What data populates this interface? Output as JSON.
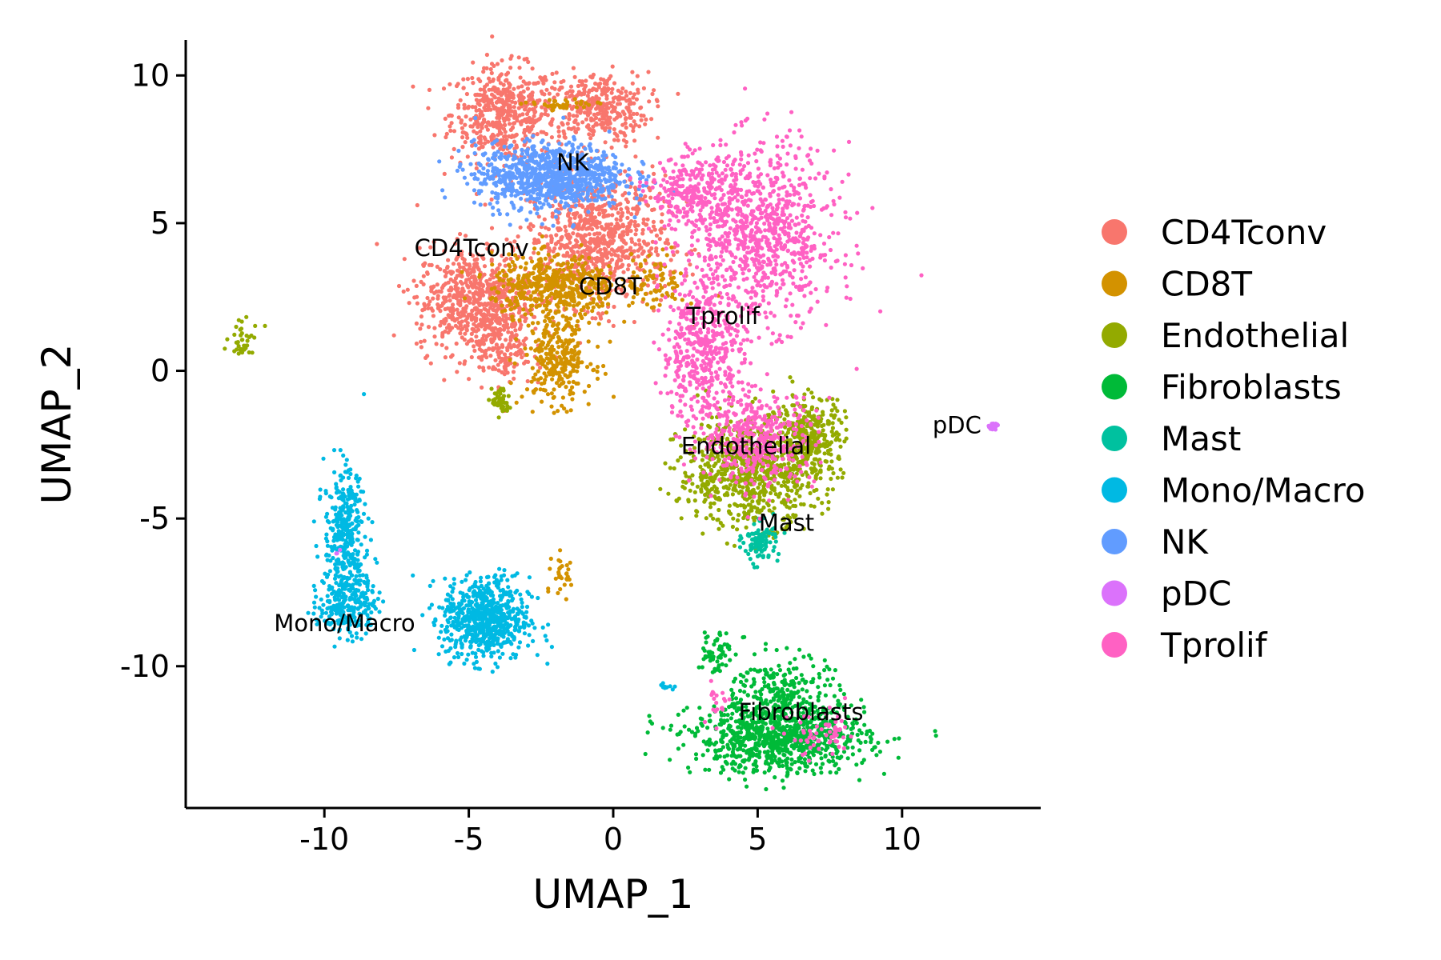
{
  "chart_data": {
    "type": "scatter",
    "title": "",
    "xlabel": "UMAP_1",
    "ylabel": "UMAP_2",
    "xlim": [
      -14.8,
      14.8
    ],
    "ylim": [
      -14.8,
      11.2
    ],
    "xticks": [
      -10,
      -5,
      0,
      5,
      10
    ],
    "yticks": [
      10,
      5,
      0,
      -5,
      -10
    ],
    "xtick_labels": [
      "-10",
      "-5",
      "0",
      "5",
      "10"
    ],
    "ytick_labels": [
      "10",
      "5",
      "0",
      "-5",
      "-10"
    ],
    "grid": false,
    "legend_position": "right",
    "series": [
      {
        "name": "CD4Tconv",
        "color": "#F8766D",
        "clusters": [
          {
            "cx": -3.8,
            "cy": 8.7,
            "sx": 0.9,
            "sy": 0.8,
            "n": 500
          },
          {
            "cx": -0.6,
            "cy": 8.9,
            "sx": 0.9,
            "sy": 0.6,
            "n": 350
          },
          {
            "cx": -0.6,
            "cy": 4.4,
            "sx": 1.2,
            "sy": 1.1,
            "n": 800
          },
          {
            "cx": -4.8,
            "cy": 2.4,
            "sx": 1.0,
            "sy": 0.9,
            "n": 650
          },
          {
            "cx": -3.8,
            "cy": 0.8,
            "sx": 0.5,
            "sy": 0.7,
            "n": 150
          }
        ]
      },
      {
        "name": "CD8T",
        "color": "#D39200",
        "clusters": [
          {
            "cx": -2.0,
            "cy": 2.9,
            "sx": 1.1,
            "sy": 0.5,
            "n": 450
          },
          {
            "cx": -1.9,
            "cy": 0.5,
            "sx": 0.6,
            "sy": 0.8,
            "n": 300
          },
          {
            "cx": -1.8,
            "cy": 9.0,
            "sx": 0.6,
            "sy": 0.1,
            "n": 40
          },
          {
            "cx": 1.5,
            "cy": 3.0,
            "sx": 0.5,
            "sy": 0.5,
            "n": 80
          },
          {
            "cx": -1.7,
            "cy": -7.0,
            "sx": 0.2,
            "sy": 0.4,
            "n": 30
          }
        ]
      },
      {
        "name": "Endothelial",
        "color": "#93AA00",
        "clusters": [
          {
            "cx": 4.7,
            "cy": -3.4,
            "sx": 1.2,
            "sy": 0.9,
            "n": 800
          },
          {
            "cx": 6.8,
            "cy": -2.2,
            "sx": 0.6,
            "sy": 0.7,
            "n": 300
          },
          {
            "cx": -12.8,
            "cy": 1.0,
            "sx": 0.3,
            "sy": 0.3,
            "n": 40
          },
          {
            "cx": -3.9,
            "cy": -1.0,
            "sx": 0.15,
            "sy": 0.25,
            "n": 50
          }
        ]
      },
      {
        "name": "Fibroblasts",
        "color": "#00BA38",
        "clusters": [
          {
            "cx": 5.8,
            "cy": -12.4,
            "sx": 1.5,
            "sy": 0.6,
            "n": 900
          },
          {
            "cx": 3.5,
            "cy": -9.5,
            "sx": 0.3,
            "sy": 0.4,
            "n": 60
          },
          {
            "cx": 5.8,
            "cy": -10.8,
            "sx": 0.8,
            "sy": 0.6,
            "n": 200
          }
        ]
      },
      {
        "name": "Mast",
        "color": "#00C19F",
        "clusters": [
          {
            "cx": 5.1,
            "cy": -5.8,
            "sx": 0.3,
            "sy": 0.35,
            "n": 100
          }
        ]
      },
      {
        "name": "Mono/Macro",
        "color": "#00B9E3",
        "clusters": [
          {
            "cx": -9.3,
            "cy": -5.5,
            "sx": 0.35,
            "sy": 1.1,
            "n": 350
          },
          {
            "cx": -9.2,
            "cy": -7.8,
            "sx": 0.5,
            "sy": 0.6,
            "n": 250
          },
          {
            "cx": -4.4,
            "cy": -8.4,
            "sx": 0.75,
            "sy": 0.7,
            "n": 700
          },
          {
            "cx": 1.8,
            "cy": -10.7,
            "sx": 0.15,
            "sy": 0.05,
            "n": 12
          }
        ]
      },
      {
        "name": "NK",
        "color": "#619CFF",
        "clusters": [
          {
            "cx": -2.2,
            "cy": 6.6,
            "sx": 1.3,
            "sy": 0.55,
            "n": 900
          }
        ]
      },
      {
        "name": "pDC",
        "color": "#DB72FB",
        "clusters": [
          {
            "cx": 13.2,
            "cy": -1.85,
            "sx": 0.1,
            "sy": 0.05,
            "n": 20
          },
          {
            "cx": -9.5,
            "cy": -6.2,
            "sx": 0.05,
            "sy": 0.05,
            "n": 3
          }
        ]
      },
      {
        "name": "Tprolif",
        "color": "#FF61C3",
        "clusters": [
          {
            "cx": 5.1,
            "cy": 4.6,
            "sx": 1.3,
            "sy": 1.5,
            "n": 900
          },
          {
            "cx": 3.1,
            "cy": 0.6,
            "sx": 0.7,
            "sy": 1.2,
            "n": 450
          },
          {
            "cx": 5.0,
            "cy": -2.3,
            "sx": 1.0,
            "sy": 0.8,
            "n": 400
          },
          {
            "cx": 2.7,
            "cy": 6.0,
            "sx": 0.7,
            "sy": 0.6,
            "n": 250
          },
          {
            "cx": 7.3,
            "cy": -12.4,
            "sx": 0.6,
            "sy": 0.4,
            "n": 60
          },
          {
            "cx": 3.6,
            "cy": -11.2,
            "sx": 0.2,
            "sy": 0.4,
            "n": 20
          }
        ]
      }
    ],
    "annotations": [
      {
        "text": "NK",
        "x": -1.4,
        "y": 7.0
      },
      {
        "text": "CD4Tconv",
        "x": -4.9,
        "y": 4.1
      },
      {
        "text": "CD8T",
        "x": -0.1,
        "y": 2.8
      },
      {
        "text": "Tprolif",
        "x": 3.8,
        "y": 1.8
      },
      {
        "text": "Endothelial",
        "x": 4.6,
        "y": -2.6
      },
      {
        "text": "Mast",
        "x": 6.0,
        "y": -5.2
      },
      {
        "text": "pDC",
        "x": 11.9,
        "y": -1.9
      },
      {
        "text": "Mono/Macro",
        "x": -9.3,
        "y": -8.6
      },
      {
        "text": "Fibroblasts",
        "x": 6.5,
        "y": -11.6
      }
    ]
  }
}
